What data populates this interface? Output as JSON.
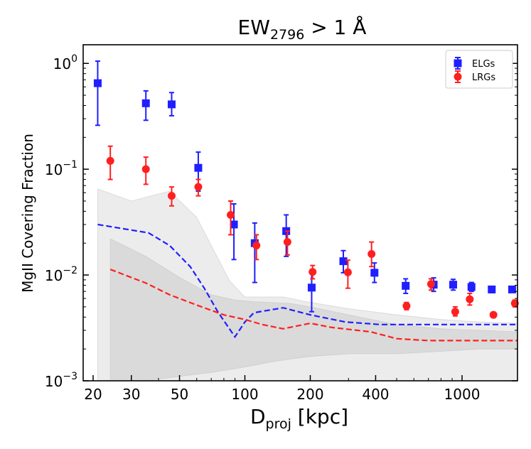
{
  "chart_data": {
    "type": "scatter",
    "title": "EW",
    "title_subscript": "2796",
    "title_suffix": " > 1 Å",
    "xlabel": "D",
    "xlabel_subscript": "proj",
    "xlabel_suffix": " [kpc]",
    "ylabel": "MgII Covering Fraction",
    "xscale": "log",
    "yscale": "log",
    "xlim": [
      18,
      1800
    ],
    "ylim": [
      0.001,
      1.5
    ],
    "xticks": [
      {
        "value": 20,
        "label": "20"
      },
      {
        "value": 30,
        "label": "30"
      },
      {
        "value": 50,
        "label": "50"
      },
      {
        "value": 100,
        "label": "100"
      },
      {
        "value": 200,
        "label": "200"
      },
      {
        "value": 400,
        "label": "400"
      },
      {
        "value": 1000,
        "label": "1000"
      }
    ],
    "yticks": [
      {
        "value": 0.001,
        "base": "10",
        "exp": "−3"
      },
      {
        "value": 0.01,
        "base": "10",
        "exp": "−2"
      },
      {
        "value": 0.1,
        "base": "10",
        "exp": "−1"
      },
      {
        "value": 1,
        "base": "10",
        "exp": "0"
      }
    ],
    "legend_position": "top-right",
    "series": [
      {
        "name": "ELGs",
        "color": "#1f1fff",
        "marker": "square",
        "points": [
          {
            "x": 21,
            "y": 0.65,
            "lo": 0.26,
            "hi": 1.05
          },
          {
            "x": 35,
            "y": 0.42,
            "lo": 0.29,
            "hi": 0.55
          },
          {
            "x": 46,
            "y": 0.41,
            "lo": 0.32,
            "hi": 0.53
          },
          {
            "x": 61,
            "y": 0.103,
            "lo": 0.062,
            "hi": 0.145
          },
          {
            "x": 89,
            "y": 0.03,
            "lo": 0.014,
            "hi": 0.047
          },
          {
            "x": 111,
            "y": 0.02,
            "lo": 0.0085,
            "hi": 0.031
          },
          {
            "x": 155,
            "y": 0.026,
            "lo": 0.015,
            "hi": 0.037
          },
          {
            "x": 203,
            "y": 0.0076,
            "lo": 0.0045,
            "hi": 0.0106
          },
          {
            "x": 284,
            "y": 0.0135,
            "lo": 0.0105,
            "hi": 0.017
          },
          {
            "x": 395,
            "y": 0.0105,
            "lo": 0.0085,
            "hi": 0.013
          },
          {
            "x": 550,
            "y": 0.0079,
            "lo": 0.0067,
            "hi": 0.0092
          },
          {
            "x": 740,
            "y": 0.0081,
            "lo": 0.007,
            "hi": 0.0094
          },
          {
            "x": 910,
            "y": 0.0081,
            "lo": 0.0072,
            "hi": 0.0091
          },
          {
            "x": 1105,
            "y": 0.0077,
            "lo": 0.007,
            "hi": 0.0085
          },
          {
            "x": 1370,
            "y": 0.0073,
            "lo": 0.0068,
            "hi": 0.0078
          },
          {
            "x": 1700,
            "y": 0.0073,
            "lo": 0.0069,
            "hi": 0.0077
          }
        ]
      },
      {
        "name": "LRGs",
        "color": "#ff1f1f",
        "marker": "circle",
        "points": [
          {
            "x": 24,
            "y": 0.12,
            "lo": 0.08,
            "hi": 0.165
          },
          {
            "x": 35,
            "y": 0.1,
            "lo": 0.072,
            "hi": 0.13
          },
          {
            "x": 46,
            "y": 0.056,
            "lo": 0.045,
            "hi": 0.068
          },
          {
            "x": 61,
            "y": 0.068,
            "lo": 0.056,
            "hi": 0.08
          },
          {
            "x": 86,
            "y": 0.037,
            "lo": 0.024,
            "hi": 0.05
          },
          {
            "x": 113,
            "y": 0.019,
            "lo": 0.014,
            "hi": 0.024
          },
          {
            "x": 157,
            "y": 0.0205,
            "lo": 0.0155,
            "hi": 0.026
          },
          {
            "x": 205,
            "y": 0.0107,
            "lo": 0.0092,
            "hi": 0.0123
          },
          {
            "x": 298,
            "y": 0.0106,
            "lo": 0.0075,
            "hi": 0.0138
          },
          {
            "x": 383,
            "y": 0.0158,
            "lo": 0.012,
            "hi": 0.0205
          },
          {
            "x": 555,
            "y": 0.0051,
            "lo": 0.0047,
            "hi": 0.0055
          },
          {
            "x": 720,
            "y": 0.0082,
            "lo": 0.0072,
            "hi": 0.0092
          },
          {
            "x": 930,
            "y": 0.0045,
            "lo": 0.0041,
            "hi": 0.005
          },
          {
            "x": 1085,
            "y": 0.0059,
            "lo": 0.0052,
            "hi": 0.0067
          },
          {
            "x": 1395,
            "y": 0.0042,
            "lo": 0.004,
            "hi": 0.0044
          },
          {
            "x": 1750,
            "y": 0.0054,
            "lo": 0.005,
            "hi": 0.0058
          }
        ]
      }
    ],
    "model_lines": [
      {
        "name": "ELG model",
        "color": "#1f1fff",
        "style": "dashed",
        "x": [
          21,
          36,
          45,
          56,
          65,
          75,
          90,
          100,
          110,
          150,
          200,
          290,
          420,
          600,
          800,
          1000,
          1300,
          1800
        ],
        "y": [
          0.03,
          0.025,
          0.019,
          0.012,
          0.0075,
          0.0045,
          0.0026,
          0.0036,
          0.0044,
          0.0049,
          0.0042,
          0.0036,
          0.0034,
          0.0034,
          0.0034,
          0.0034,
          0.0034,
          0.0034
        ]
      },
      {
        "name": "LRG model",
        "color": "#ff1f1f",
        "style": "dashed",
        "x": [
          24,
          35,
          45,
          60,
          80,
          100,
          120,
          150,
          200,
          250,
          380,
          500,
          700,
          1000,
          1300,
          1800
        ],
        "y": [
          0.0113,
          0.0084,
          0.0065,
          0.0052,
          0.0042,
          0.0038,
          0.0034,
          0.0031,
          0.0035,
          0.0032,
          0.0029,
          0.0025,
          0.0024,
          0.0024,
          0.0024,
          0.0024
        ]
      }
    ],
    "bands": [
      {
        "name": "ELG model range",
        "fill": "#d9d9d9",
        "opacity": 0.5,
        "x": [
          21,
          30,
          45,
          60,
          85,
          100,
          150,
          200,
          300,
          500,
          800,
          1200,
          1800
        ],
        "upper": [
          0.065,
          0.05,
          0.062,
          0.035,
          0.0088,
          0.0062,
          0.0062,
          0.0055,
          0.0048,
          0.0042,
          0.0038,
          0.0036,
          0.0035
        ],
        "lower": [
          0.001,
          0.001,
          0.001,
          0.001,
          0.001,
          0.001,
          0.001,
          0.001,
          0.001,
          0.001,
          0.001,
          0.001,
          0.001
        ]
      },
      {
        "name": "LRG model range",
        "fill": "#c8c8c8",
        "opacity": 0.5,
        "x": [
          24,
          35,
          50,
          70,
          90,
          110,
          130,
          160,
          200,
          300,
          500,
          800,
          1200,
          1800
        ],
        "upper": [
          0.022,
          0.015,
          0.0095,
          0.0065,
          0.0058,
          0.0056,
          0.0055,
          0.0054,
          0.005,
          0.0042,
          0.0034,
          0.0031,
          0.003,
          0.0029
        ],
        "lower": [
          0.001,
          0.001,
          0.0011,
          0.0012,
          0.0013,
          0.0014,
          0.0015,
          0.0016,
          0.0017,
          0.0018,
          0.0018,
          0.0019,
          0.002,
          0.002
        ]
      }
    ]
  }
}
